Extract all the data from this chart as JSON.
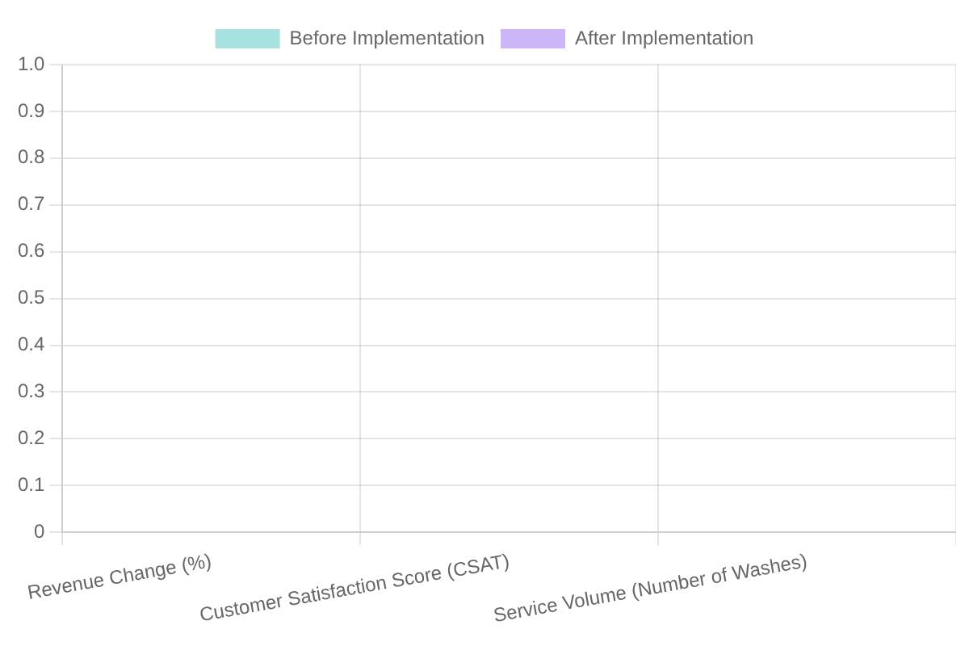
{
  "chart_data": {
    "type": "bar",
    "categories": [
      "Revenue Change (%)",
      "Customer Satisfaction Score (CSAT)",
      "Service Volume (Number of Washes)"
    ],
    "series": [
      {
        "name": "Before Implementation",
        "color": "#a8e2e0",
        "values": [
          null,
          null,
          null
        ]
      },
      {
        "name": "After Implementation",
        "color": "#cdb6f7",
        "values": [
          null,
          null,
          null
        ]
      }
    ],
    "ylim": [
      0,
      1
    ],
    "yticks": [
      0,
      0.1,
      0.2,
      0.3,
      0.4,
      0.5,
      0.6,
      0.7,
      0.8,
      0.9,
      {
        "value": 1,
        "label": "1.0"
      }
    ],
    "grid": true,
    "legend": "top"
  }
}
